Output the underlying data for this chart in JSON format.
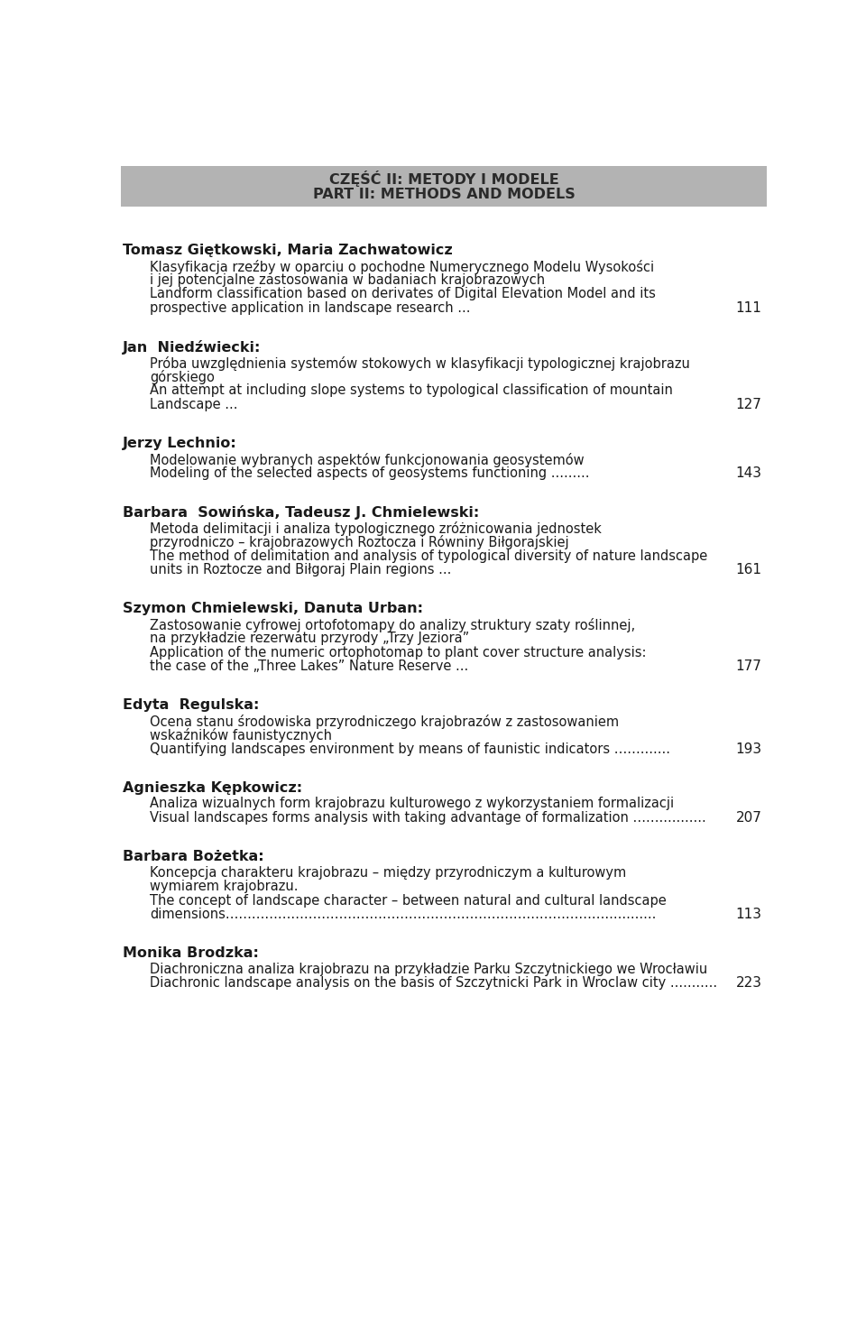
{
  "bg_color": "#ffffff",
  "header_bg": "#b3b3b3",
  "header_line1": "CZĘŚĆ II: METODY I MODELE",
  "header_line2": "PART II: METHODS AND MODELS",
  "entries": [
    {
      "author": "Tomasz Giętkowski, Maria Zachwatowicz",
      "lines": [
        "Klasyfikacja rzeźby w oparciu o pochodne Numerycznego Modelu Wysokości",
        "i jej potencjalne zastosowania w badaniach krajobrazowych",
        "Landform classification based on derivates of Digital Elevation Model and its",
        "prospective application in landscape research ..."
      ],
      "page": "111"
    },
    {
      "author": "Jan  Niedźwiecki:",
      "lines": [
        "Próba uwzględnienia systemów stokowych w klasyfikacji typologicznej krajobrazu",
        "górskiego",
        "An attempt at including slope systems to typological classification of mountain",
        "Landscape ..."
      ],
      "page": "127"
    },
    {
      "author": "Jerzy Lechnio:",
      "lines": [
        "Modelowanie wybranych aspektów funkcjonowania geosystemów",
        "Modeling of the selected aspects of geosystems functioning ........."
      ],
      "page": "143"
    },
    {
      "author": "Barbara  Sowińska, Tadeusz J. Chmielewski:",
      "lines": [
        "Metoda delimitacji i analiza typologicznego zróżnicowania jednostek",
        "przyrodniczo – krajobrazowych Roztocza i Równiny Biłgorajskiej",
        "The method of delimitation and analysis of typological diversity of nature landscape",
        "units in Roztocze and Biłgoraj Plain regions ..."
      ],
      "page": "161"
    },
    {
      "author": "Szymon Chmielewski, Danuta Urban:",
      "lines": [
        "Zastosowanie cyfrowej ortofotomapy do analizy struktury szaty roślinnej,",
        "na przykładzie rezerwatu przyrody „Trzy Jeziora”",
        "Application of the numeric ortophotomap to plant cover structure analysis:",
        "the case of the „Three Lakes” Nature Reserve ..."
      ],
      "page": "177"
    },
    {
      "author": "Edyta  Regulska:",
      "lines": [
        "Ocena stanu środowiska przyrodniczego krajobrazów z zastosowaniem",
        "wskaźników faunistycznych",
        "Quantifying landscapes environment by means of faunistic indicators ……......."
      ],
      "page": "193"
    },
    {
      "author": "Agnieszka Kępkowicz:",
      "lines": [
        "Analiza wizualnych form krajobrazu kulturowego z wykorzystaniem formalizacji",
        "Visual landscapes forms analysis with taking advantage of formalization ……..........."
      ],
      "page": "207"
    },
    {
      "author": "Barbara Bożetka:",
      "lines": [
        "Koncepcja charakteru krajobrazu – między przyrodniczym a kulturowym",
        "wymiarem krajobrazu.",
        "The concept of landscape character – between natural and cultural landscape",
        "dimensions……………………………………………………………………………............"
      ],
      "page": "113"
    },
    {
      "author": "Monika Brodzka:",
      "lines": [
        "Diachroniczna analiza krajobrazu na przykładzie Parku Szczytnickiego we Wrocławiu",
        "Diachronic landscape analysis on the basis of Szczytnicki Park in Wroclaw city ..........."
      ],
      "page": "223"
    }
  ],
  "header_fontsize": 11.5,
  "author_fontsize": 11.5,
  "body_fontsize": 10.5,
  "page_fontsize": 11
}
